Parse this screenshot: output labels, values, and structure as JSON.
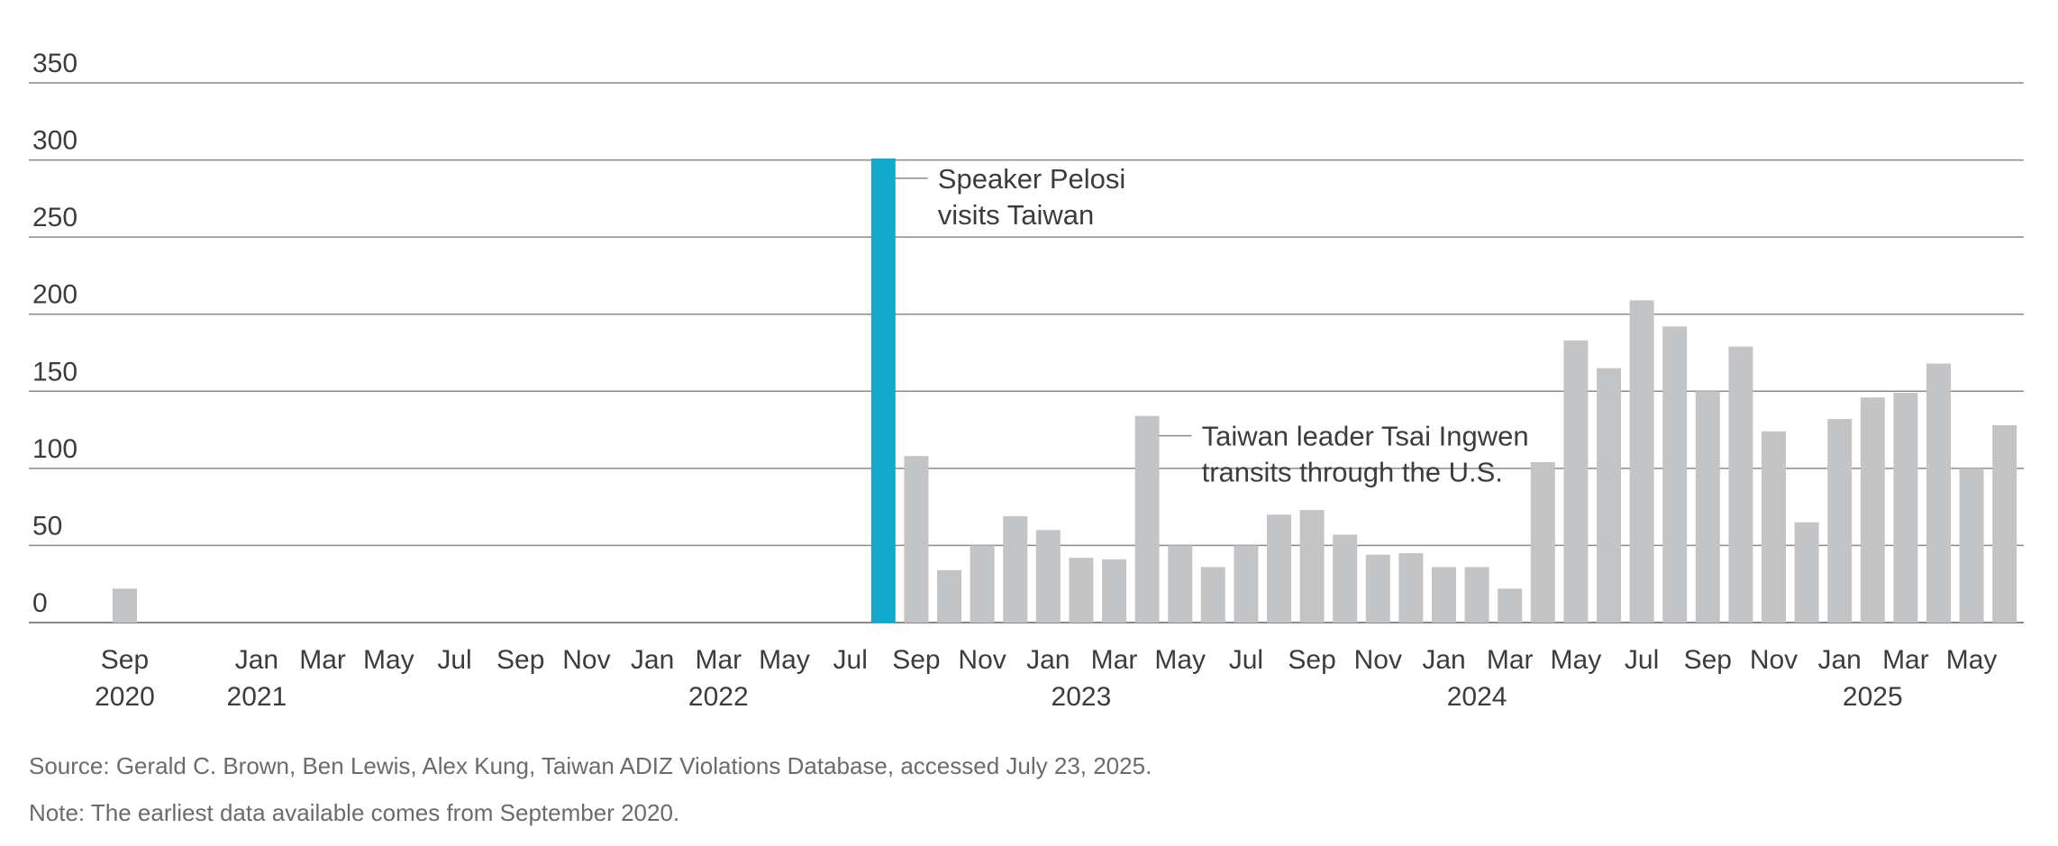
{
  "chart_data": {
    "type": "bar",
    "ylim": [
      0,
      350
    ],
    "y_ticks": [
      0,
      50,
      100,
      150,
      200,
      250,
      300,
      350
    ],
    "grid": true,
    "categories": [
      "2020-09",
      "2020-10",
      "2020-11",
      "2020-12",
      "2021-01",
      "2021-02",
      "2021-03",
      "2021-04",
      "2021-05",
      "2021-06",
      "2021-07",
      "2021-08",
      "2021-09",
      "2021-10",
      "2021-11",
      "2021-12",
      "2022-01",
      "2022-02",
      "2022-03",
      "2022-04",
      "2022-05",
      "2022-06",
      "2022-07",
      "2022-08",
      "2022-09",
      "2022-10",
      "2022-11",
      "2022-12",
      "2023-01",
      "2023-02",
      "2023-03",
      "2023-04",
      "2023-05",
      "2023-06",
      "2023-07",
      "2023-08",
      "2023-09",
      "2023-10",
      "2023-11",
      "2023-12",
      "2024-01",
      "2024-02",
      "2024-03",
      "2024-04",
      "2024-05",
      "2024-06",
      "2024-07",
      "2024-08",
      "2024-09",
      "2024-10",
      "2024-11",
      "2024-12",
      "2025-01",
      "2025-02",
      "2025-03",
      "2025-04",
      "2025-05",
      "2025-06"
    ],
    "values": [
      22,
      0,
      0,
      0,
      0,
      0,
      0,
      0,
      0,
      0,
      0,
      0,
      0,
      0,
      0,
      0,
      0,
      0,
      0,
      0,
      0,
      0,
      0,
      301,
      108,
      34,
      50,
      69,
      60,
      42,
      41,
      134,
      50,
      36,
      50,
      70,
      73,
      57,
      44,
      45,
      36,
      36,
      22,
      104,
      183,
      165,
      209,
      192,
      150,
      179,
      124,
      65,
      132,
      146,
      149,
      168,
      100,
      128
    ],
    "highlight_index": 23,
    "colors": {
      "bar": "#c2c4c6",
      "highlight": "#12a9cd",
      "grid": "#8a8a8a"
    },
    "x_tick_labels": [
      {
        "label": "Sep",
        "year": "2020",
        "category": "2020-09"
      },
      {
        "label": "Jan",
        "year": "2021",
        "category": "2021-01"
      },
      {
        "label": "Mar",
        "category": "2021-03"
      },
      {
        "label": "May",
        "category": "2021-05"
      },
      {
        "label": "Jul",
        "category": "2021-07"
      },
      {
        "label": "Sep",
        "category": "2021-09"
      },
      {
        "label": "Nov",
        "category": "2021-11"
      },
      {
        "label": "Jan",
        "category": "2022-01"
      },
      {
        "label": "Mar",
        "category": "2022-03"
      },
      {
        "label": "May",
        "category": "2022-05"
      },
      {
        "label": "Jul",
        "category": "2022-07"
      },
      {
        "label": "Sep",
        "category": "2022-09"
      },
      {
        "label": "Nov",
        "category": "2022-11"
      },
      {
        "label": "Jan",
        "category": "2023-01"
      },
      {
        "label": "Mar",
        "category": "2023-03"
      },
      {
        "label": "May",
        "category": "2023-05"
      },
      {
        "label": "Jul",
        "category": "2023-07"
      },
      {
        "label": "Sep",
        "category": "2023-09"
      },
      {
        "label": "Nov",
        "category": "2023-11"
      },
      {
        "label": "Jan",
        "category": "2024-01"
      },
      {
        "label": "Mar",
        "category": "2024-03"
      },
      {
        "label": "May",
        "category": "2024-05"
      },
      {
        "label": "Jul",
        "category": "2024-07"
      },
      {
        "label": "Sep",
        "category": "2024-09"
      },
      {
        "label": "Nov",
        "category": "2024-11"
      },
      {
        "label": "Jan",
        "category": "2025-01"
      },
      {
        "label": "Mar",
        "category": "2025-03"
      },
      {
        "label": "May",
        "category": "2025-05"
      }
    ],
    "year_labels": [
      {
        "label": "2020",
        "category": "2020-09"
      },
      {
        "label": "2021",
        "category": "2021-01"
      },
      {
        "label": "2022",
        "category": "2022-03"
      },
      {
        "label": "2023",
        "category": "2023-02"
      },
      {
        "label": "2024",
        "category": "2024-02"
      },
      {
        "label": "2025",
        "category": "2025-02"
      }
    ],
    "annotations": [
      {
        "category": "2022-08",
        "lines": [
          "Speaker Pelosi",
          "visits Taiwan"
        ]
      },
      {
        "category": "2023-04",
        "lines": [
          "Taiwan leader Tsai Ingwen",
          "transits through the U.S."
        ]
      }
    ]
  },
  "source": "Source: Gerald C. Brown, Ben Lewis, Alex Kung, Taiwan ADIZ Violations Database, accessed July 23, 2025.",
  "note": "Note: The earliest data available comes from September 2020."
}
